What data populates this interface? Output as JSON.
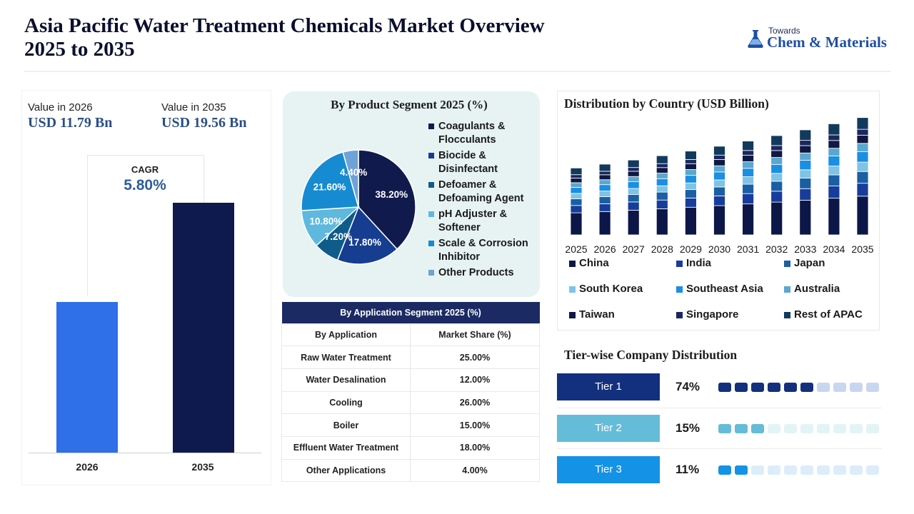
{
  "header": {
    "title": "Asia Pacific Water Treatment Chemicals Market Overview 2025 to 2035",
    "logo_small": "Towards",
    "logo_big": "Chem & Materials"
  },
  "summary": {
    "value_2026_label": "Value in 2026",
    "value_2026": "USD 11.79 Bn",
    "value_2035_label": "Value in 2035",
    "value_2035": "USD 19.56 Bn",
    "cagr_label": "CAGR",
    "cagr_value": "5.80%",
    "colors": {
      "bar_2026": "#2f6fe8",
      "bar_2035": "#0e1a4d"
    }
  },
  "pie_legend": [
    {
      "label": "Coagulants &",
      "label2": "Flocculants",
      "color": "#111a4c"
    },
    {
      "label": "Biocide &",
      "label2": "Disinfectant",
      "color": "#163d8f"
    },
    {
      "label": "Defoamer &",
      "label2": "Defoaming Agent",
      "color": "#0f5c8a"
    },
    {
      "label": "pH Adjuster &",
      "label2": "Softener",
      "color": "#5fb8dd"
    },
    {
      "label": "Scale & Corrosion",
      "label2": "Inhibitor",
      "color": "#168bd1"
    },
    {
      "label": "Other Products",
      "label2": "",
      "color": "#6fa2d6"
    }
  ],
  "application_table": {
    "title": "By Application Segment 2025 (%)",
    "col1": "By Application",
    "col2": "Market Share (%)",
    "rows": [
      {
        "app": "Raw Water Treatment",
        "share": "25.00%"
      },
      {
        "app": "Water Desalination",
        "share": "12.00%"
      },
      {
        "app": "Cooling",
        "share": "26.00%"
      },
      {
        "app": "Boiler",
        "share": "15.00%"
      },
      {
        "app": "Effluent Water Treatment",
        "share": "18.00%"
      },
      {
        "app": "Other Applications",
        "share": "4.00%"
      }
    ]
  },
  "country_legend": [
    {
      "label": "China",
      "color": "#0c1748"
    },
    {
      "label": "India",
      "color": "#173d9c"
    },
    {
      "label": "Japan",
      "color": "#1a5fa3"
    },
    {
      "label": "South Korea",
      "color": "#7fc3e6"
    },
    {
      "label": "Southeast Asia",
      "color": "#1a8fe3"
    },
    {
      "label": "Australia",
      "color": "#5aa7cf"
    },
    {
      "label": "Taiwan",
      "color": "#101842"
    },
    {
      "label": "Singapore",
      "color": "#1a2760"
    },
    {
      "label": "Rest of APAC",
      "color": "#123a5c"
    }
  ],
  "tiers": {
    "title": "Tier-wise Company Distribution",
    "items": [
      {
        "label": "Tier 1",
        "pct": "74%",
        "filled": 6,
        "total": 10,
        "color": "#13307e",
        "light": "#c8d6f0"
      },
      {
        "label": "Tier 2",
        "pct": "15%",
        "filled": 3,
        "total": 10,
        "color": "#64bcd8",
        "light": "#e3f3f6"
      },
      {
        "label": "Tier 3",
        "pct": "11%",
        "filled": 2,
        "total": 10,
        "color": "#1492e6",
        "light": "#dcedfa"
      }
    ]
  },
  "chart_data": [
    {
      "type": "bar",
      "categories": [
        "2026",
        "2035"
      ],
      "values": [
        11.79,
        19.56
      ],
      "title": "",
      "xlabel": "",
      "ylabel": "",
      "ylim": [
        0,
        19.56
      ]
    },
    {
      "type": "pie",
      "title": "By Product Segment 2025 (%)",
      "labels": [
        "Coagulants & Flocculants",
        "Biocide & Disinfectant",
        "Defoamer & Defoaming Agent",
        "pH Adjuster & Softener",
        "Scale & Corrosion Inhibitor",
        "Other Products"
      ],
      "values": [
        38.2,
        17.8,
        7.2,
        10.8,
        21.6,
        4.4
      ],
      "value_labels": [
        "38.20%",
        "17.80%",
        "7.20%",
        "10.80%",
        "21.60%",
        "4.40%"
      ],
      "colors": [
        "#111a4c",
        "#163d8f",
        "#0f5c8a",
        "#5fb8dd",
        "#168bd1",
        "#6fa2d6"
      ]
    },
    {
      "type": "bar",
      "stacked": true,
      "title": "Distribution by Country (USD Billion)",
      "categories": [
        "2025",
        "2026",
        "2027",
        "2028",
        "2029",
        "2030",
        "2031",
        "2032",
        "2033",
        "2034",
        "2035"
      ],
      "totals": [
        11.15,
        11.79,
        12.48,
        13.2,
        13.97,
        14.78,
        15.64,
        16.55,
        17.51,
        18.52,
        19.56
      ],
      "shares": {
        "China": 0.33,
        "India": 0.11,
        "Japan": 0.1,
        "South Korea": 0.08,
        "Southeast Asia": 0.09,
        "Australia": 0.07,
        "Taiwan": 0.07,
        "Singapore": 0.05,
        "Rest of APAC": 0.1
      },
      "legend": [
        "China",
        "India",
        "Japan",
        "South Korea",
        "Southeast Asia",
        "Australia",
        "Taiwan",
        "Singapore",
        "Rest of APAC"
      ],
      "ylim": [
        0,
        20
      ]
    }
  ]
}
